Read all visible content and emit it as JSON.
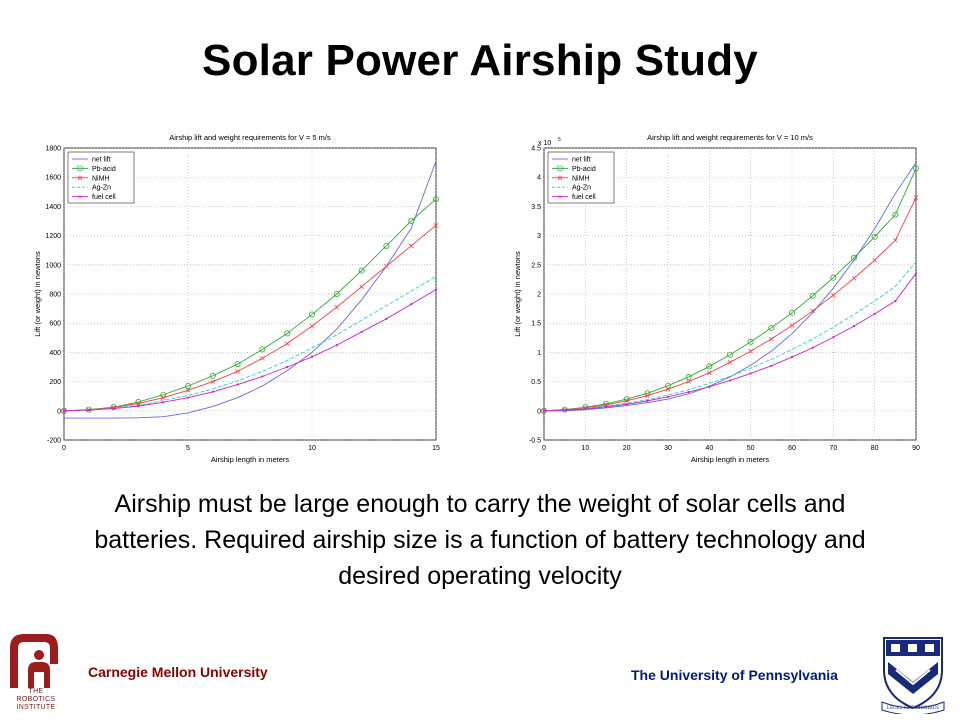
{
  "title": "Solar Power Airship Study",
  "body_text": "Airship must be large enough to carry the weight of solar cells and batteries.  Required airship size is a function of battery technology and desired operating velocity",
  "footer": {
    "cmu_name": "Carnegie Mellon University",
    "cmu_logo_text": [
      "THE",
      "ROBOTICS",
      "INSTITUTE"
    ],
    "penn_name": "The University of Pennsylvania",
    "penn_motto": "LEGES SINE MORIBUS"
  },
  "colors": {
    "cmu": "#8b0000",
    "penn": "#001a80"
  },
  "chart_data": [
    {
      "type": "line",
      "title": "Airship lift and weight requirements for V = 5 m/s",
      "xlabel": "Airship length in meters",
      "ylabel": "Lift (or weight) in newtons",
      "xlim": [
        0,
        15
      ],
      "ylim": [
        -200,
        1800
      ],
      "xticks": [
        0,
        5,
        10,
        15
      ],
      "yticks": [
        -200,
        0,
        200,
        400,
        600,
        800,
        1000,
        1200,
        1400,
        1600,
        1800
      ],
      "exponent_label": "",
      "grid": true,
      "legend_position": "top-left",
      "x": [
        0,
        1,
        2,
        3,
        4,
        5,
        6,
        7,
        8,
        9,
        10,
        11,
        12,
        13,
        14,
        15
      ],
      "series": [
        {
          "name": "net lift",
          "color": "#6666ee",
          "marker": "none",
          "dashed": false,
          "values": [
            -50,
            -50,
            -50,
            -48,
            -40,
            -15,
            30,
            90,
            170,
            275,
            400,
            560,
            760,
            990,
            1250,
            1710
          ]
        },
        {
          "name": "Pb-acid",
          "color": "#33aa33",
          "marker": "circle",
          "dashed": false,
          "values": [
            0,
            8,
            25,
            60,
            110,
            170,
            240,
            320,
            420,
            530,
            660,
            800,
            960,
            1130,
            1300,
            1450
          ]
        },
        {
          "name": "NiMH",
          "color": "#ee4444",
          "marker": "x",
          "dashed": false,
          "values": [
            0,
            7,
            22,
            50,
            90,
            140,
            200,
            270,
            360,
            460,
            580,
            710,
            850,
            990,
            1130,
            1270
          ]
        },
        {
          "name": "Ag-Zn",
          "color": "#33cccc",
          "marker": "none",
          "dashed": true,
          "values": [
            0,
            6,
            18,
            38,
            70,
            105,
            150,
            205,
            270,
            345,
            430,
            520,
            620,
            720,
            820,
            920
          ]
        },
        {
          "name": "fuel cell",
          "color": "#cc22cc",
          "marker": "dot",
          "dashed": false,
          "values": [
            0,
            5,
            15,
            32,
            58,
            90,
            130,
            180,
            235,
            300,
            370,
            450,
            540,
            630,
            730,
            830
          ]
        }
      ]
    },
    {
      "type": "line",
      "title": "Airship lift and weight requirements for V = 10 m/s",
      "xlabel": "Airship length in meters",
      "ylabel": "Lift (or weight) in newtons",
      "xlim": [
        0,
        90
      ],
      "ylim": [
        -0.5,
        4.5
      ],
      "xticks": [
        0,
        10,
        20,
        30,
        40,
        50,
        60,
        70,
        80,
        90
      ],
      "yticks": [
        -0.5,
        0,
        0.5,
        1,
        1.5,
        2,
        2.5,
        3,
        3.5,
        4,
        4.5
      ],
      "exponent_label": "x 10",
      "exponent_power": "5",
      "grid": true,
      "legend_position": "top-left",
      "x": [
        0,
        5,
        10,
        15,
        20,
        25,
        30,
        35,
        40,
        45,
        50,
        55,
        60,
        65,
        70,
        75,
        80,
        85,
        90
      ],
      "series": [
        {
          "name": "net lift",
          "color": "#6666ee",
          "marker": "none",
          "dashed": false,
          "values": [
            0,
            0.0,
            0.02,
            0.05,
            0.09,
            0.14,
            0.2,
            0.29,
            0.42,
            0.58,
            0.78,
            1.02,
            1.32,
            1.68,
            2.1,
            2.58,
            3.12,
            3.72,
            4.25
          ]
        },
        {
          "name": "Pb-acid",
          "color": "#33aa33",
          "marker": "circle",
          "dashed": false,
          "values": [
            0,
            0.02,
            0.06,
            0.12,
            0.2,
            0.3,
            0.43,
            0.58,
            0.76,
            0.96,
            1.18,
            1.42,
            1.68,
            1.97,
            2.28,
            2.62,
            2.98,
            3.36,
            4.15
          ]
        },
        {
          "name": "NiMH",
          "color": "#ee4444",
          "marker": "x",
          "dashed": false,
          "values": [
            0,
            0.02,
            0.05,
            0.1,
            0.17,
            0.26,
            0.37,
            0.5,
            0.65,
            0.83,
            1.02,
            1.23,
            1.46,
            1.71,
            1.98,
            2.27,
            2.58,
            2.92,
            3.65
          ]
        },
        {
          "name": "Ag-Zn",
          "color": "#33cccc",
          "marker": "none",
          "dashed": true,
          "values": [
            0,
            0.01,
            0.04,
            0.08,
            0.13,
            0.19,
            0.27,
            0.36,
            0.47,
            0.59,
            0.73,
            0.88,
            1.05,
            1.23,
            1.43,
            1.65,
            1.88,
            2.13,
            2.55
          ]
        },
        {
          "name": "fuel cell",
          "color": "#cc22cc",
          "marker": "dot",
          "dashed": false,
          "values": [
            0,
            0.01,
            0.03,
            0.07,
            0.11,
            0.17,
            0.24,
            0.32,
            0.41,
            0.52,
            0.64,
            0.77,
            0.92,
            1.08,
            1.26,
            1.45,
            1.66,
            1.88,
            2.35
          ]
        }
      ]
    }
  ]
}
